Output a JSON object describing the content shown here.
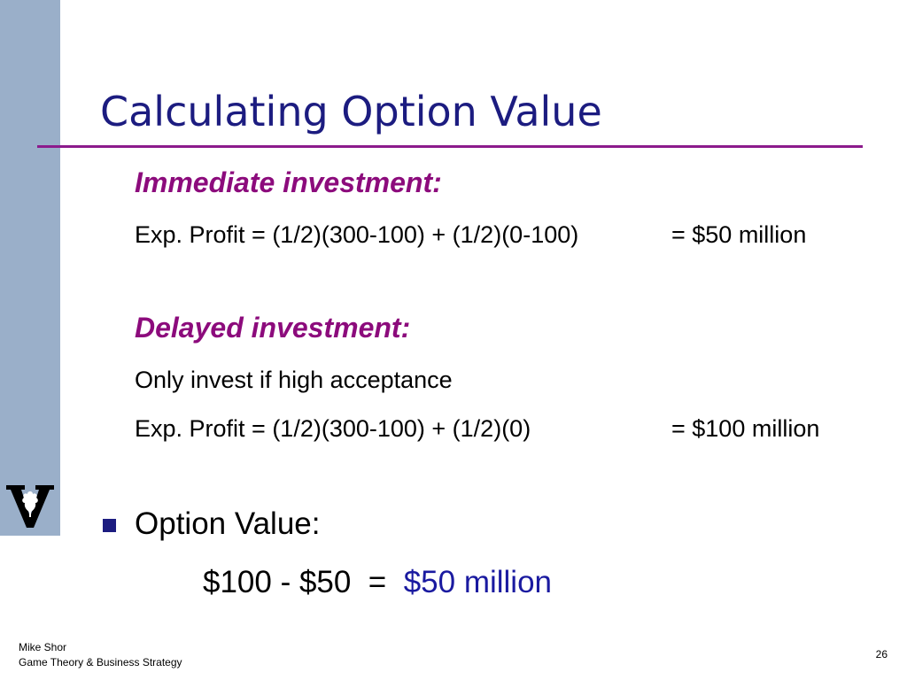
{
  "slide": {
    "title": "Calculating Option Value",
    "immediate": {
      "heading": "Immediate investment:",
      "profit_lhs": "Exp. Profit = (1/2)(300-100) + (1/2)(0-100)",
      "profit_rhs": "= $50 million"
    },
    "delayed": {
      "heading": "Delayed investment:",
      "condition": "Only invest if high acceptance",
      "profit_lhs": "Exp. Profit = (1/2)(300-100) + (1/2)(0)",
      "profit_rhs": "= $100 million"
    },
    "option_value": {
      "label": "Option Value:",
      "expression": "$100 - $50  =  ",
      "result": "$50 million"
    }
  },
  "footer": {
    "author": "Mike Shor",
    "course": "Game Theory & Business Strategy",
    "page_number": "26"
  },
  "colors": {
    "title": "#1c1c80",
    "heading": "#8c0b7c",
    "rule": "#8c1a8c",
    "sidebar": "#9aafc9",
    "result": "#1a1aa0"
  },
  "icons": {
    "logo": "vanderbilt-v-oak-leaf-icon",
    "bullet": "square-bullet-icon"
  }
}
